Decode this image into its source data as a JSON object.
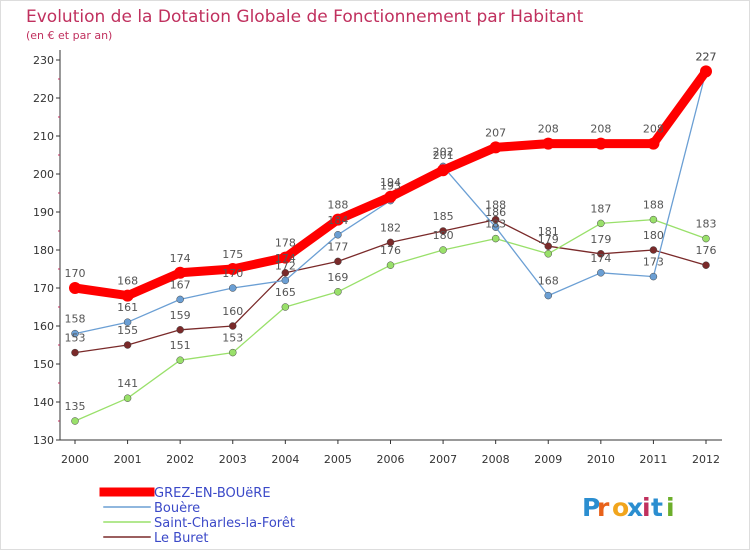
{
  "chart_data": {
    "type": "line",
    "title": "Evolution de la Dotation Globale de Fonctionnement par Habitant",
    "subtitle": "(en € et par an)",
    "x": [
      "2000",
      "2001",
      "2002",
      "2003",
      "2004",
      "2005",
      "2006",
      "2007",
      "2008",
      "2009",
      "2010",
      "2011",
      "2012"
    ],
    "ylim": [
      130,
      230
    ],
    "yticks": [
      130,
      140,
      150,
      160,
      170,
      180,
      190,
      200,
      210,
      220,
      230
    ],
    "grid": false,
    "legend_position": "bottom-left",
    "series": [
      {
        "name": "GREZ-EN-BOUëRE",
        "color": "#ff0000",
        "values": [
          170,
          168,
          174,
          175,
          178,
          188,
          194,
          201,
          207,
          208,
          208,
          208,
          227
        ]
      },
      {
        "name": "Bouère",
        "color": "#6b9fd4",
        "values": [
          158,
          161,
          167,
          170,
          172,
          184,
          193,
          202,
          186,
          168,
          174,
          173,
          227
        ]
      },
      {
        "name": "Saint-Charles-la-Forêt",
        "color": "#99e06a",
        "values": [
          135,
          141,
          151,
          153,
          165,
          169,
          176,
          180,
          183,
          179,
          187,
          188,
          183
        ]
      },
      {
        "name": "Le Buret",
        "color": "#7a2a2a",
        "values": [
          153,
          155,
          159,
          160,
          174,
          177,
          182,
          185,
          188,
          181,
          179,
          180,
          176
        ]
      }
    ]
  },
  "logo": {
    "text": "Proxiti",
    "letters": [
      "P",
      "r",
      "o",
      "x",
      "i",
      "t",
      "i"
    ],
    "colors": [
      "#2b8ed0",
      "#e8621a",
      "#f1a51d",
      "#2b8ed0",
      "#c0305e",
      "#2b8ed0",
      "#6cae2a"
    ]
  }
}
